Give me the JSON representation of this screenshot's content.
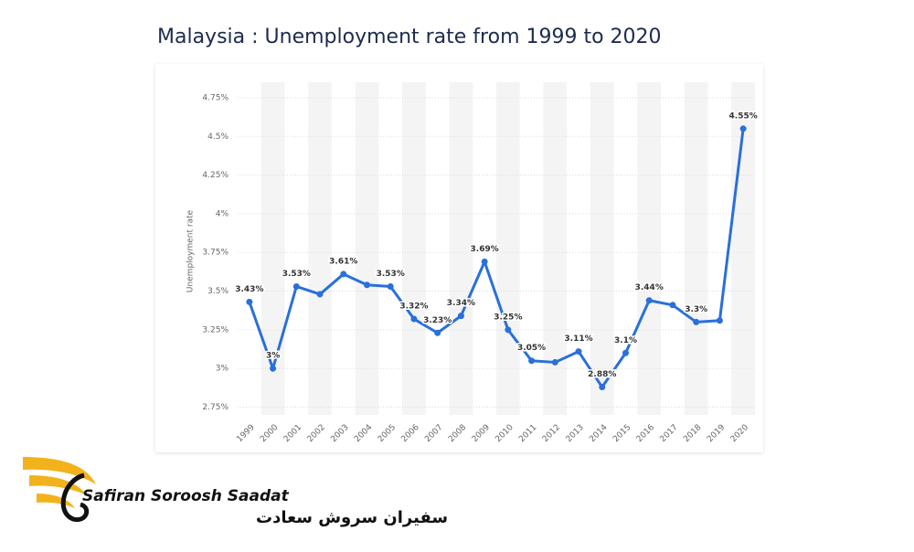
{
  "chart_data": {
    "type": "line",
    "title": "Malaysia : Unemployment rate from 1999 to 2020",
    "y_label": "Unemployment rate",
    "categories": [
      "1999",
      "2000",
      "2001",
      "2002",
      "2003",
      "2004",
      "2005",
      "2006",
      "2007",
      "2008",
      "2009",
      "2010",
      "2011",
      "2012",
      "2013",
      "2014",
      "2015",
      "2016",
      "2017",
      "2018",
      "2019",
      "2020"
    ],
    "series": [
      {
        "name": "Unemployment rate",
        "color": "#2a6fdb",
        "values": [
          3.43,
          3,
          3.53,
          3.48,
          3.61,
          3.54,
          3.53,
          3.32,
          3.23,
          3.34,
          3.69,
          3.25,
          3.05,
          3.04,
          3.11,
          2.88,
          3.1,
          3.44,
          3.41,
          3.3,
          3.31,
          4.55
        ],
        "value_labels": [
          "3.43%",
          "3%",
          "3.53%",
          null,
          "3.61%",
          null,
          "3.53%",
          "3.32%",
          "3.23%",
          "3.34%",
          "3.69%",
          "3.25%",
          "3.05%",
          null,
          "3.11%",
          "2.88%",
          "3.1%",
          "3.44%",
          null,
          "3.3%",
          null,
          "4.55%"
        ]
      }
    ],
    "ylim": [
      2.7,
      4.85
    ],
    "yticks": [
      {
        "value": 2.75,
        "label": "2.75%"
      },
      {
        "value": 3,
        "label": "3%"
      },
      {
        "value": 3.25,
        "label": "3.25%"
      },
      {
        "value": 3.5,
        "label": "3.5%"
      },
      {
        "value": 3.75,
        "label": "3.75%"
      },
      {
        "value": 4,
        "label": "4%"
      },
      {
        "value": 4.25,
        "label": "4.25%"
      },
      {
        "value": 4.5,
        "label": "4.5%"
      },
      {
        "value": 4.75,
        "label": "4.75%"
      }
    ],
    "grid": true
  },
  "logo": {
    "name": "Safiran Soroosh Saadat",
    "name_fa": "سفیران سروش سعادت"
  }
}
